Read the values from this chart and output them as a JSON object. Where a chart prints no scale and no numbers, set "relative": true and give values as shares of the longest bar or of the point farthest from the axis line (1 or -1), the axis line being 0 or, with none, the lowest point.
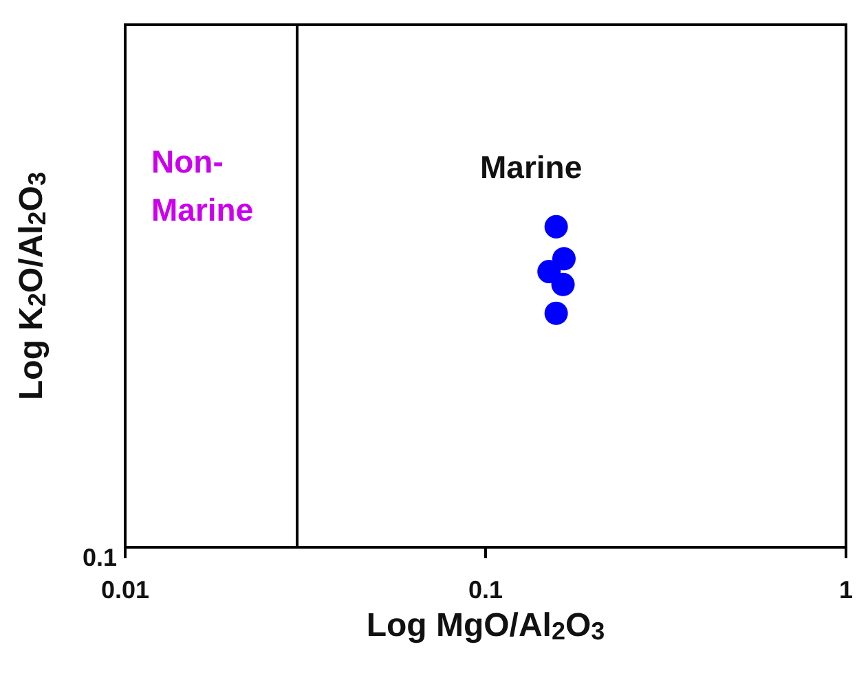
{
  "chart_data": {
    "type": "scatter",
    "xlabel": "Log MgO/Al$_{2}$O$_{3}$",
    "ylabel": "Log K$_{2}$O/Al$_{2}$O$_{3}$",
    "annotations": [
      "Non-\nMarine",
      "Marine",
      "0.1"
    ],
    "series": [
      {
        "color": "#0000ff",
        "x": [
          0.157,
          0.15,
          0.165,
          0.164,
          0.157
        ],
        "values": [
          1,
          0.86,
          0.9,
          0.82,
          0.73
        ]
      }
    ],
    "relative": true,
    "xlim": [
      0.01,
      1
    ],
    "xticks": [
      0.01,
      0.1,
      1
    ],
    "log": "x",
    "grid": false,
    "marker": "circle",
    "ref_lines": [
      {
        "axis": "x",
        "value": 0.03,
        "color": "#000000"
      }
    ]
  }
}
